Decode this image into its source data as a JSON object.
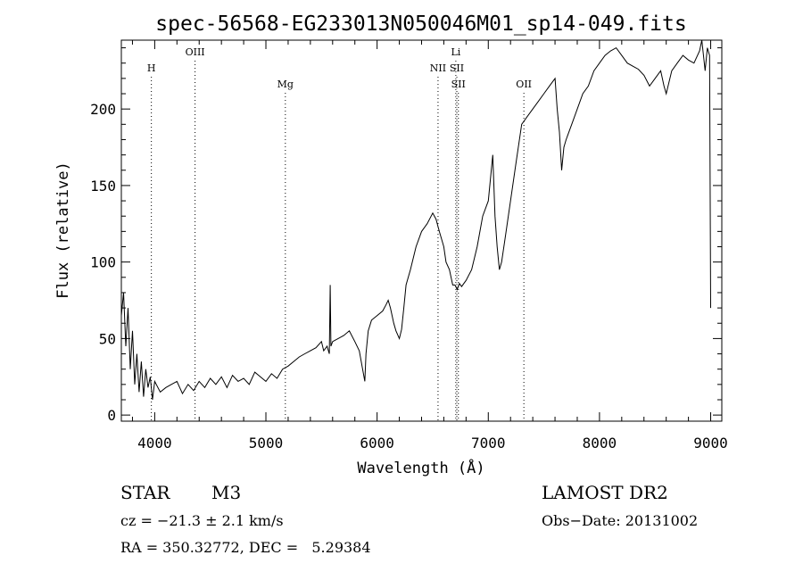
{
  "chart_data": {
    "type": "line",
    "title": "spec-56568-EG233013N050046M01_sp14-049.fits",
    "xlabel": "Wavelength (Å)",
    "ylabel": "Flux (relative)",
    "xlim": [
      3700,
      9100
    ],
    "ylim": [
      -4,
      245
    ],
    "xticks": [
      4000,
      5000,
      6000,
      7000,
      8000,
      9000
    ],
    "yticks": [
      0,
      50,
      100,
      150,
      200
    ],
    "grid": false,
    "series": [
      {
        "x": [
          3700,
          3720,
          3740,
          3760,
          3780,
          3800,
          3820,
          3840,
          3860,
          3880,
          3900,
          3920,
          3940,
          3960,
          3980,
          4000,
          4050,
          4100,
          4150,
          4200,
          4250,
          4300,
          4350,
          4400,
          4450,
          4500,
          4550,
          4600,
          4650,
          4700,
          4750,
          4800,
          4850,
          4900,
          4950,
          5000,
          5050,
          5100,
          5150,
          5200,
          5250,
          5300,
          5350,
          5400,
          5450,
          5500,
          5520,
          5550,
          5570,
          5578,
          5585,
          5600,
          5650,
          5700,
          5750,
          5800,
          5840,
          5870,
          5890,
          5900,
          5920,
          5950,
          6000,
          6050,
          6080,
          6100,
          6120,
          6150,
          6170,
          6200,
          6220,
          6240,
          6260,
          6300,
          6350,
          6400,
          6450,
          6500,
          6530,
          6560,
          6580,
          6600,
          6620,
          6650,
          6680,
          6700,
          6720,
          6740,
          6760,
          6800,
          6850,
          6900,
          6950,
          7000,
          7020,
          7040,
          7060,
          7080,
          7100,
          7120,
          7150,
          7200,
          7250,
          7300,
          7350,
          7400,
          7450,
          7500,
          7550,
          7600,
          7620,
          7640,
          7660,
          7680,
          7700,
          7750,
          7800,
          7850,
          7900,
          7950,
          8000,
          8050,
          8100,
          8150,
          8200,
          8250,
          8300,
          8350,
          8400,
          8450,
          8500,
          8550,
          8580,
          8600,
          8650,
          8700,
          8750,
          8800,
          8850,
          8900,
          8920,
          8950,
          8970,
          8990,
          9000
        ],
        "y": [
          65,
          80,
          45,
          70,
          30,
          55,
          20,
          40,
          15,
          35,
          12,
          30,
          18,
          25,
          10,
          22,
          15,
          18,
          20,
          22,
          14,
          20,
          16,
          22,
          18,
          24,
          20,
          25,
          18,
          26,
          22,
          24,
          20,
          28,
          25,
          22,
          27,
          24,
          30,
          32,
          35,
          38,
          40,
          42,
          44,
          48,
          42,
          45,
          40,
          85,
          45,
          48,
          50,
          52,
          55,
          48,
          42,
          30,
          22,
          40,
          55,
          62,
          65,
          68,
          72,
          75,
          70,
          60,
          55,
          50,
          56,
          70,
          85,
          95,
          110,
          120,
          125,
          132,
          128,
          120,
          115,
          110,
          100,
          95,
          85,
          85,
          82,
          86,
          84,
          88,
          95,
          110,
          130,
          140,
          155,
          170,
          130,
          110,
          95,
          100,
          115,
          140,
          165,
          190,
          195,
          200,
          205,
          210,
          215,
          220,
          200,
          185,
          160,
          175,
          180,
          190,
          200,
          210,
          215,
          225,
          230,
          235,
          238,
          240,
          235,
          230,
          228,
          226,
          222,
          215,
          220,
          225,
          215,
          210,
          225,
          230,
          235,
          232,
          230,
          238,
          245,
          225,
          240,
          235,
          70
        ]
      }
    ],
    "line_markers": [
      {
        "label": "H",
        "x": 3970,
        "row": 1
      },
      {
        "label": "OIII",
        "x": 4363,
        "row": 0
      },
      {
        "label": "Mg",
        "x": 5175,
        "row": 2
      },
      {
        "label": "NII",
        "x": 6548,
        "row": 1
      },
      {
        "label": "Li",
        "x": 6708,
        "row": 0
      },
      {
        "label": "SII",
        "x": 6717,
        "row": 1
      },
      {
        "label": "SII",
        "x": 6731,
        "row": 2
      },
      {
        "label": "OII",
        "x": 7320,
        "row": 2
      }
    ]
  },
  "info": {
    "class_label": "STAR",
    "subclass": "M3",
    "survey": "LAMOST DR2",
    "velocity": "cz = −21.3 ± 2.1 km/s",
    "obs_date": "Obs−Date: 20131002",
    "coords": "RA = 350.32772, DEC =   5.29384"
  }
}
